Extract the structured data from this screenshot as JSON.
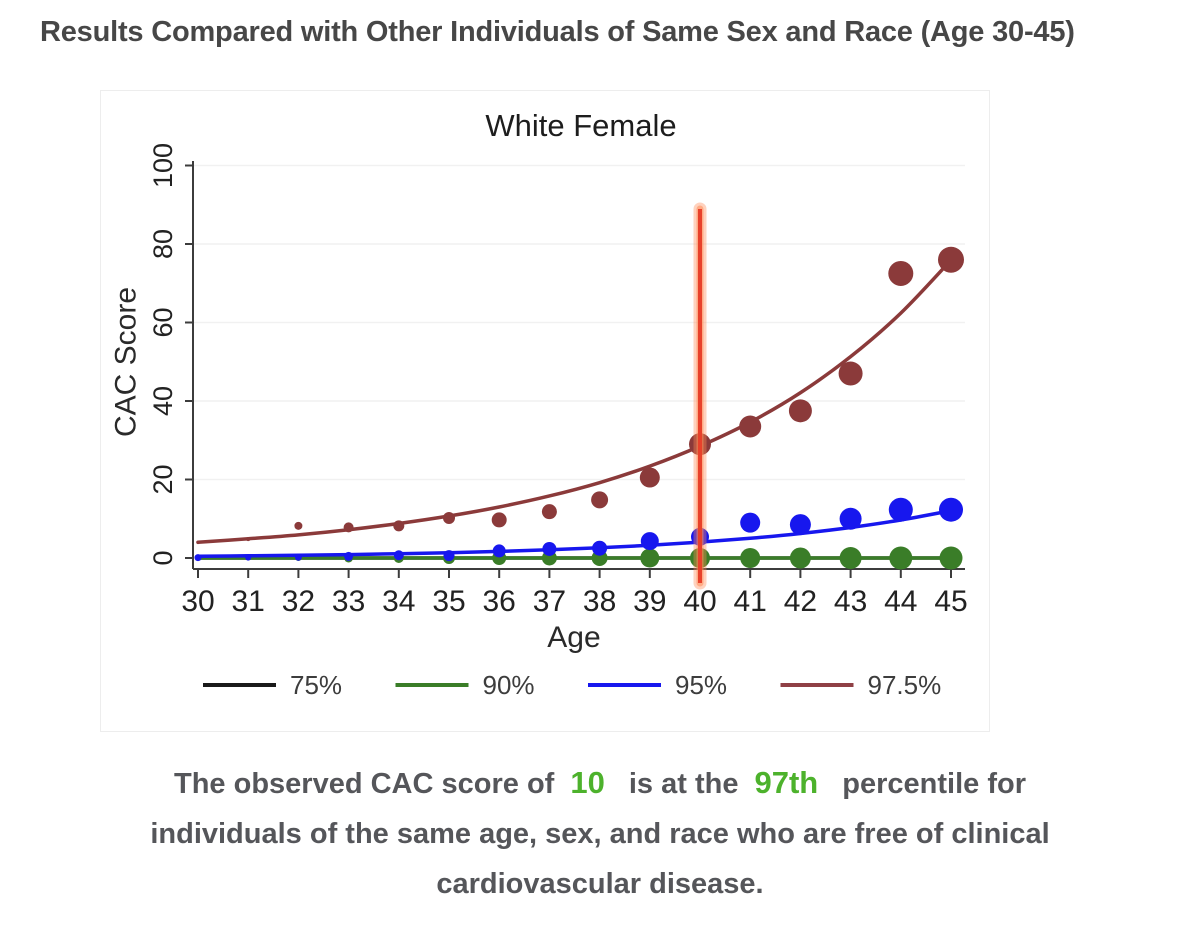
{
  "header": {
    "title": "Results Compared with Other Individuals of Same Sex and Race (Age 30-45)"
  },
  "chart_data": {
    "type": "scatter",
    "title": "White Female",
    "xlabel": "Age",
    "ylabel": "CAC Score",
    "x_range": [
      30,
      45
    ],
    "ylim": [
      0,
      100
    ],
    "yticks": [
      0,
      20,
      40,
      60,
      80,
      100
    ],
    "ages": [
      30,
      31,
      32,
      33,
      34,
      35,
      36,
      37,
      38,
      39,
      40,
      41,
      42,
      43,
      44,
      45
    ],
    "grid": "horizontal-light",
    "gridline_color": "#f1f1f1",
    "axis_color": "#3c3c3c",
    "tick_label_color": "#222222",
    "legend_position": "bottom",
    "marker_line": {
      "age": 40,
      "core_color": "#e8412b",
      "glow_color": "#ff8a55"
    },
    "series": [
      {
        "name": "75%",
        "color": "#1a1a1a",
        "legend_color": "#1a1a1a",
        "fit": [
          0,
          0,
          0,
          0,
          0,
          0,
          0,
          0,
          0,
          0,
          0,
          0,
          0,
          0,
          0,
          0
        ],
        "points": null,
        "radii": null
      },
      {
        "name": "90%",
        "color": "#3a7d28",
        "legend_color": "#3a7d28",
        "fit": [
          0,
          0,
          0,
          0,
          0,
          0,
          0,
          0,
          0,
          0,
          0,
          0,
          0,
          0,
          0,
          0
        ],
        "points": [
          0,
          0,
          0,
          0,
          0,
          0,
          0,
          0,
          0,
          0,
          0,
          0,
          0,
          0,
          0,
          0
        ],
        "radii": [
          2.5,
          2.5,
          3,
          4.5,
          5,
          6,
          7,
          7.5,
          8,
          9.5,
          10,
          10,
          10.5,
          11,
          11.5,
          11.5
        ]
      },
      {
        "name": "95%",
        "color": "#1717ee",
        "legend_color": "#1717ee",
        "fit": [
          0.45,
          0.56,
          0.7,
          0.87,
          1.08,
          1.35,
          1.68,
          2.09,
          2.6,
          3.24,
          4.03,
          5.02,
          6.25,
          7.78,
          9.69,
          12.06
        ],
        "points": [
          0.1,
          0.1,
          0.2,
          0.4,
          0.7,
          0.6,
          1.8,
          2.3,
          2.5,
          4.3,
          5.4,
          9,
          8.5,
          10,
          12.3,
          12.3
        ],
        "radii": [
          3.5,
          3,
          3.5,
          4.5,
          5,
          5.5,
          6.5,
          7,
          7.5,
          9,
          9,
          10,
          10.5,
          11,
          12,
          12
        ]
      },
      {
        "name": "97.5%",
        "color": "#8b3a3a",
        "legend_color": "#8f4045",
        "fit": [
          4,
          4.9,
          5.9,
          7.2,
          8.8,
          10.7,
          13,
          15.8,
          19.2,
          23.4,
          28.5,
          34.6,
          42.1,
          51.3,
          62.4,
          75.9
        ],
        "points": [
          4,
          4.8,
          8.2,
          7.8,
          8.2,
          10.2,
          9.7,
          11.8,
          14.8,
          20.5,
          29,
          33.5,
          37.5,
          47,
          72.5,
          76
        ],
        "radii": [
          1.8,
          2,
          4,
          5,
          5.5,
          6,
          7.5,
          7.5,
          8.5,
          10,
          11,
          11,
          11.5,
          12,
          12.5,
          13
        ]
      }
    ]
  },
  "caption": {
    "segments": [
      {
        "text": "The observed CAC score of",
        "highlight": false
      },
      {
        "text": "10",
        "highlight": true
      },
      {
        "text": "is at the",
        "highlight": false
      },
      {
        "text": "97th",
        "highlight": true
      },
      {
        "text": "percentile for individuals of the same age, sex, and race who are free of clinical cardiovascular disease.",
        "highlight": false
      }
    ]
  }
}
